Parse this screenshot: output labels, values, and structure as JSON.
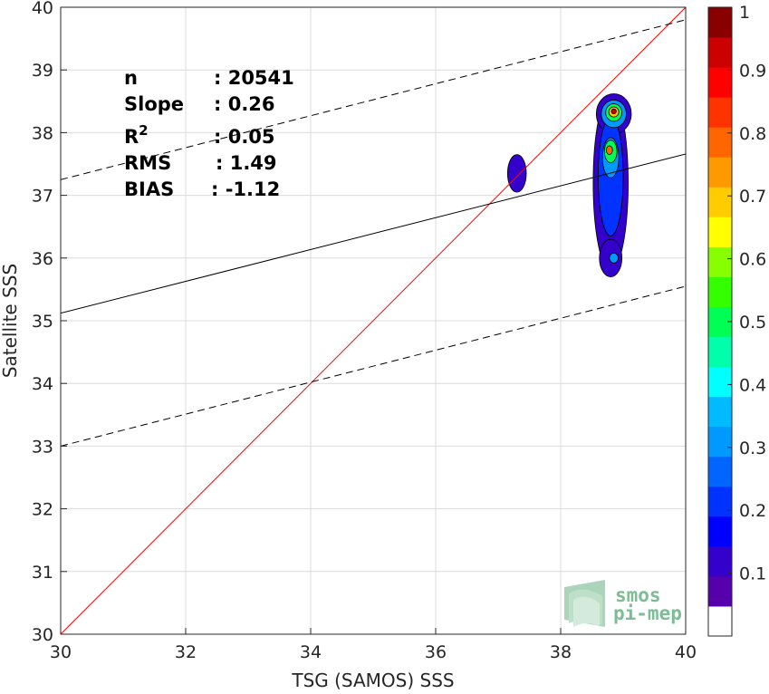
{
  "chart_data": {
    "type": "scatter",
    "xlabel": "TSG (SAMOS) SSS",
    "ylabel": "Satellite SSS",
    "xlim": [
      30,
      40
    ],
    "ylim": [
      30,
      40
    ],
    "xticks": [
      "30",
      "32",
      "34",
      "36",
      "38",
      "40"
    ],
    "yticks": [
      "30",
      "31",
      "32",
      "33",
      "34",
      "35",
      "36",
      "37",
      "38",
      "39",
      "40"
    ],
    "grid": true,
    "stats": [
      {
        "label": "n",
        "value": ": 20541"
      },
      {
        "label": "Slope",
        "value": ": 0.26"
      },
      {
        "label": "R",
        "sup": "2",
        "value": ": 0.05"
      },
      {
        "label": "RMS",
        "value": ": 1.49"
      },
      {
        "label": "BIAS",
        "value": ": -1.12"
      }
    ],
    "reference_lines": {
      "one_to_one": {
        "x": [
          30,
          40
        ],
        "y": [
          30,
          40
        ],
        "color": "#ff0000"
      },
      "fit": {
        "x": [
          30,
          40
        ],
        "y": [
          35.12,
          37.66
        ],
        "color": "#000000"
      },
      "upper_bound": {
        "x": [
          30,
          40
        ],
        "y": [
          37.25,
          39.8
        ],
        "color": "#000000",
        "style": "dashed"
      },
      "lower_bound": {
        "x": [
          30,
          40
        ],
        "y": [
          33.0,
          35.55
        ],
        "color": "#000000",
        "style": "dashed"
      }
    },
    "density_blobs": [
      {
        "x": 37.3,
        "y": 37.35,
        "rx": 0.15,
        "ry": 0.3,
        "level": 0.1
      },
      {
        "x": 38.8,
        "y": 37.2,
        "rx": 0.28,
        "ry": 1.4,
        "level": 0.1
      },
      {
        "x": 38.8,
        "y": 36.0,
        "rx": 0.18,
        "ry": 0.3,
        "level": 0.1
      },
      {
        "x": 38.85,
        "y": 38.3,
        "rx": 0.28,
        "ry": 0.32,
        "level": 0.1
      },
      {
        "x": 38.8,
        "y": 37.3,
        "rx": 0.2,
        "ry": 0.95,
        "level": 0.2
      },
      {
        "x": 38.85,
        "y": 38.3,
        "rx": 0.2,
        "ry": 0.22,
        "level": 0.3
      },
      {
        "x": 38.8,
        "y": 37.6,
        "rx": 0.13,
        "ry": 0.32,
        "level": 0.3
      },
      {
        "x": 38.85,
        "y": 36.0,
        "rx": 0.07,
        "ry": 0.08,
        "level": 0.3
      },
      {
        "x": 38.8,
        "y": 37.7,
        "rx": 0.1,
        "ry": 0.18,
        "level": 0.5
      },
      {
        "x": 38.85,
        "y": 38.32,
        "rx": 0.13,
        "ry": 0.14,
        "level": 0.5
      },
      {
        "x": 38.85,
        "y": 38.33,
        "rx": 0.08,
        "ry": 0.08,
        "level": 0.7
      },
      {
        "x": 38.78,
        "y": 37.72,
        "rx": 0.05,
        "ry": 0.07,
        "level": 0.8
      },
      {
        "x": 38.85,
        "y": 38.34,
        "rx": 0.04,
        "ry": 0.04,
        "level": 0.95
      }
    ],
    "colorbar": {
      "min": 0,
      "max": 1,
      "ticks": [
        "0.1",
        "0.2",
        "0.3",
        "0.4",
        "0.5",
        "0.6",
        "0.7",
        "0.8",
        "0.9",
        "1"
      ],
      "colors": [
        "#ffffff",
        "#5500aa",
        "#3300cc",
        "#0000ff",
        "#0033ff",
        "#0066ff",
        "#0099ff",
        "#00bbff",
        "#00ffff",
        "#00ffaa",
        "#00ff55",
        "#33ff00",
        "#88ff00",
        "#ffff00",
        "#ffcc00",
        "#ff9900",
        "#ff6600",
        "#ff3300",
        "#ff0000",
        "#cc0000",
        "#880000"
      ]
    }
  },
  "logo": {
    "line1": "smos",
    "line2": "pi-mep"
  }
}
